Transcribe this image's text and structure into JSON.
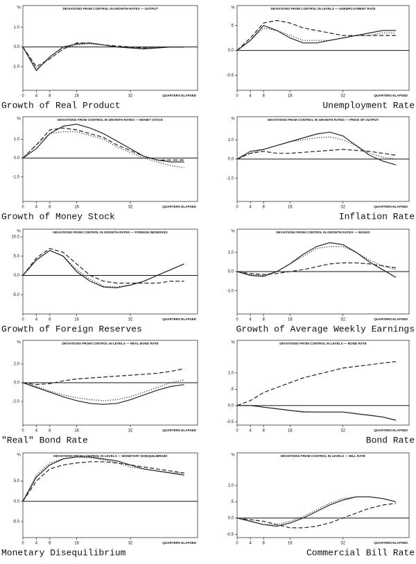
{
  "chart_data": [
    {
      "type": "line",
      "title": "DEVIATIONS FROM CONTROL IN GROWTH RATES — OUTPUT",
      "caption": "Growth of Real Product",
      "y_label": "%",
      "x_label": "QUARTERS ELAPSED",
      "x": [
        0,
        4,
        8,
        12,
        16,
        20,
        24,
        28,
        32,
        36,
        40,
        44,
        48
      ],
      "xlim": [
        0,
        52
      ],
      "xticks": [
        0,
        4,
        8,
        16,
        32
      ],
      "ylim": [
        -2.2,
        2.1
      ],
      "yticks": [
        {
          "value": 1,
          "label": "1.0"
        },
        {
          "value": 0,
          "label": "0.0"
        },
        {
          "value": -1,
          "label": "-1.0"
        }
      ],
      "series": [
        {
          "color": "#222",
          "dash": "solid",
          "values": [
            0,
            -1.2,
            -0.5,
            0,
            0.15,
            0.2,
            0.1,
            0,
            -0.05,
            -0.1,
            -0.05,
            0,
            0
          ]
        },
        {
          "color": "#222",
          "dash": "dotted",
          "values": [
            0,
            -1.1,
            -0.6,
            -0.1,
            0.1,
            0.15,
            0.1,
            0,
            -0.05,
            -0.05,
            0,
            0,
            0
          ]
        },
        {
          "color": "#222",
          "dash": "dashed",
          "values": [
            0,
            -1.0,
            -0.6,
            -0.1,
            0.2,
            0.2,
            0.1,
            0.05,
            0,
            -0.05,
            -0.05,
            0,
            0
          ]
        }
      ]
    },
    {
      "type": "line",
      "title": "DEVIATIONS FROM CONTROL IN LEVELS — UNEMPLOYMENT RATE",
      "caption": "Unemployment Rate",
      "y_label": "%",
      "x_label": "QUARTERS ELAPSED",
      "x": [
        0,
        4,
        8,
        12,
        16,
        20,
        24,
        28,
        32,
        36,
        40,
        44,
        48
      ],
      "xlim": [
        0,
        52
      ],
      "xticks": [
        0,
        4,
        8,
        16,
        32
      ],
      "ylim": [
        -0.8,
        0.9
      ],
      "yticks": [
        {
          "value": 0.5,
          "label": ".5"
        },
        {
          "value": 0,
          "label": "0.0"
        },
        {
          "value": -0.5,
          "label": "-0.5"
        }
      ],
      "series": [
        {
          "color": "#222",
          "dash": "solid",
          "values": [
            0,
            0.2,
            0.5,
            0.4,
            0.25,
            0.15,
            0.15,
            0.2,
            0.25,
            0.3,
            0.35,
            0.4,
            0.4
          ]
        },
        {
          "color": "#222",
          "dash": "dotted",
          "values": [
            0,
            0.2,
            0.45,
            0.4,
            0.3,
            0.2,
            0.2,
            0.2,
            0.25,
            0.3,
            0.3,
            0.35,
            0.35
          ]
        },
        {
          "color": "#222",
          "dash": "dashed",
          "values": [
            0,
            0.25,
            0.55,
            0.6,
            0.55,
            0.45,
            0.4,
            0.35,
            0.3,
            0.3,
            0.3,
            0.3,
            0.3
          ]
        }
      ]
    },
    {
      "type": "line",
      "title": "DEVIATIONS FROM CONTROL IN GROWTH RATES — MONEY STOCK",
      "caption": "Growth of Money Stock",
      "y_label": "%",
      "x_label": "QUARTERS ELAPSED",
      "x": [
        0,
        4,
        8,
        12,
        16,
        20,
        24,
        28,
        32,
        36,
        40,
        44,
        48
      ],
      "xlim": [
        0,
        52
      ],
      "xticks": [
        0,
        4,
        8,
        16,
        32
      ],
      "ylim": [
        -2.3,
        2.2
      ],
      "yticks": [
        {
          "value": 1,
          "label": "1.0"
        },
        {
          "value": 0,
          "label": "0.0"
        },
        {
          "value": -1,
          "label": "-1.0"
        }
      ],
      "series": [
        {
          "color": "#222",
          "dash": "solid",
          "values": [
            0,
            0.5,
            1.3,
            1.7,
            1.8,
            1.6,
            1.3,
            0.9,
            0.5,
            0.1,
            -0.1,
            -0.2,
            -0.2
          ]
        },
        {
          "color": "#222",
          "dash": "dotted",
          "values": [
            0,
            0.7,
            1.3,
            1.4,
            1.4,
            1.2,
            1.0,
            0.6,
            0.3,
            0,
            -0.2,
            -0.4,
            -0.5
          ]
        },
        {
          "color": "#222",
          "dash": "dashed",
          "values": [
            0,
            0.7,
            1.5,
            1.6,
            1.5,
            1.3,
            1.1,
            0.7,
            0.4,
            0.1,
            -0.1,
            -0.1,
            -0.1
          ]
        }
      ]
    },
    {
      "type": "line",
      "title": "DEVIATIONS FROM CONTROL IN GROWTH RATES — PRICE OF OUTPUT",
      "caption": "Inflation Rate",
      "y_label": "%",
      "x_label": "QUARTERS ELAPSED",
      "x": [
        0,
        4,
        8,
        12,
        16,
        20,
        24,
        28,
        32,
        36,
        40,
        44,
        48
      ],
      "xlim": [
        0,
        52
      ],
      "xticks": [
        0,
        4,
        8,
        16,
        32
      ],
      "ylim": [
        -2.2,
        2.2
      ],
      "yticks": [
        {
          "value": 1,
          "label": "1.0"
        },
        {
          "value": 0,
          "label": "0.0"
        },
        {
          "value": -1,
          "label": "-1.0"
        }
      ],
      "series": [
        {
          "color": "#222",
          "dash": "solid",
          "values": [
            0,
            0.4,
            0.5,
            0.7,
            0.9,
            1.1,
            1.3,
            1.4,
            1.2,
            0.7,
            0.2,
            -0.1,
            -0.3
          ]
        },
        {
          "color": "#222",
          "dash": "dotted",
          "values": [
            0,
            0.3,
            0.5,
            0.7,
            0.9,
            1.0,
            1.1,
            1.15,
            1.0,
            0.7,
            0.3,
            0.1,
            0
          ]
        },
        {
          "color": "#222",
          "dash": "dashed",
          "values": [
            0,
            0.3,
            0.4,
            0.3,
            0.3,
            0.35,
            0.4,
            0.45,
            0.5,
            0.45,
            0.4,
            0.3,
            0.2
          ]
        }
      ]
    },
    {
      "type": "line",
      "title": "DEVIATIONS FROM CONTROL IN GROWTH RATES — FOREIGN RESERVES",
      "caption": "Growth of Foreign Reserves",
      "y_label": "%",
      "x_label": "QUARTERS ELAPSED",
      "x": [
        0,
        4,
        8,
        12,
        16,
        20,
        24,
        28,
        32,
        36,
        40,
        44,
        48
      ],
      "xlim": [
        0,
        52
      ],
      "xticks": [
        0,
        4,
        8,
        16,
        32
      ],
      "ylim": [
        -10,
        12
      ],
      "yticks": [
        {
          "value": 10,
          "label": "10.0"
        },
        {
          "value": 5,
          "label": "5.0"
        },
        {
          "value": 0,
          "label": "0.0"
        },
        {
          "value": -5,
          "label": "-5.0"
        }
      ],
      "series": [
        {
          "color": "#222",
          "dash": "solid",
          "values": [
            0,
            4,
            6.5,
            5,
            1,
            -1.5,
            -3,
            -3.2,
            -2.5,
            -1.5,
            0,
            1.5,
            3
          ]
        },
        {
          "color": "#222",
          "dash": "dotted",
          "values": [
            0,
            4,
            6.5,
            5,
            1.5,
            -1,
            -2.8,
            -3,
            -2.5,
            -1.5,
            0,
            1.5,
            3
          ]
        },
        {
          "color": "#222",
          "dash": "dashed",
          "values": [
            0,
            4.5,
            7,
            6,
            3,
            0,
            -1.5,
            -2,
            -2,
            -2,
            -2,
            -1.5,
            -1.5
          ]
        }
      ]
    },
    {
      "type": "line",
      "title": "DEVIATIONS FROM CONTROL IN GROWTH RATES — WAGES",
      "caption": "Growth of Average Weekly Earnings",
      "y_label": "%",
      "x_label": "QUARTERS ELAPSED",
      "x": [
        0,
        4,
        8,
        12,
        16,
        20,
        24,
        28,
        32,
        36,
        40,
        44,
        48
      ],
      "xlim": [
        0,
        52
      ],
      "xticks": [
        0,
        4,
        8,
        16,
        32
      ],
      "ylim": [
        -2.2,
        2.2
      ],
      "yticks": [
        {
          "value": 1,
          "label": "1.0"
        },
        {
          "value": 0,
          "label": "0.0"
        },
        {
          "value": -1,
          "label": "-1.0"
        }
      ],
      "series": [
        {
          "color": "#222",
          "dash": "solid",
          "values": [
            0,
            -0.2,
            -0.25,
            0,
            0.4,
            0.9,
            1.3,
            1.5,
            1.4,
            1.0,
            0.5,
            0.1,
            -0.3
          ]
        },
        {
          "color": "#222",
          "dash": "dotted",
          "values": [
            0,
            -0.15,
            -0.2,
            0,
            0.4,
            0.8,
            1.2,
            1.3,
            1.3,
            1.0,
            0.6,
            0.3,
            0.1
          ]
        },
        {
          "color": "#222",
          "dash": "dashed",
          "values": [
            0,
            -0.1,
            -0.15,
            -0.1,
            0,
            0.1,
            0.25,
            0.4,
            0.45,
            0.45,
            0.4,
            0.3,
            0.2
          ]
        }
      ]
    },
    {
      "type": "line",
      "title": "DEVIATIONS FROM CONTROL IN LEVELS — REAL BOND RATE",
      "caption": "\"Real\" Bond Rate",
      "y_label": "%",
      "x_label": "QUARTERS ELAPSED",
      "x": [
        0,
        4,
        8,
        12,
        16,
        20,
        24,
        28,
        32,
        36,
        40,
        44,
        48
      ],
      "xlim": [
        0,
        52
      ],
      "xticks": [
        0,
        4,
        8,
        16,
        32
      ],
      "ylim": [
        -4.5,
        4.5
      ],
      "yticks": [
        {
          "value": 2,
          "label": "2.0"
        },
        {
          "value": 0,
          "label": "0.0"
        },
        {
          "value": -2,
          "label": "-2.0"
        }
      ],
      "series": [
        {
          "color": "#222",
          "dash": "solid",
          "values": [
            0,
            -0.5,
            -1,
            -1.5,
            -1.9,
            -2.2,
            -2.3,
            -2.2,
            -1.8,
            -1.3,
            -0.8,
            -0.4,
            -0.2
          ]
        },
        {
          "color": "#222",
          "dash": "dotted",
          "values": [
            0,
            -0.4,
            -0.9,
            -1.3,
            -1.6,
            -1.8,
            -1.9,
            -1.8,
            -1.5,
            -1.0,
            -0.5,
            0,
            0.3
          ]
        },
        {
          "color": "#222",
          "dash": "dashed",
          "values": [
            0,
            -0.2,
            -0.1,
            0.2,
            0.4,
            0.5,
            0.6,
            0.7,
            0.8,
            0.9,
            1.0,
            1.2,
            1.5
          ]
        }
      ]
    },
    {
      "type": "line",
      "title": "DEVIATIONS FROM CONTROL IN LEVELS — BOND RATE",
      "caption": "Bond Rate",
      "y_label": "%",
      "x_label": "QUARTERS ELAPSED",
      "x": [
        0,
        4,
        8,
        12,
        16,
        20,
        24,
        28,
        32,
        36,
        40,
        44,
        48
      ],
      "xlim": [
        0,
        52
      ],
      "xticks": [
        0,
        4,
        8,
        16,
        32
      ],
      "ylim": [
        -0.6,
        2.0
      ],
      "yticks": [
        {
          "value": 1,
          "label": "1.0"
        },
        {
          "value": 0.5,
          "label": ".5"
        },
        {
          "value": 0,
          "label": "0.0"
        },
        {
          "value": -0.5,
          "label": "-0.5"
        }
      ],
      "series": [
        {
          "color": "#222",
          "dash": "solid",
          "values": [
            0,
            0,
            -0.05,
            -0.1,
            -0.15,
            -0.2,
            -0.2,
            -0.2,
            -0.2,
            -0.25,
            -0.3,
            -0.35,
            -0.45
          ]
        },
        {
          "color": "#222",
          "dash": "dotted",
          "values": [
            0,
            0,
            -0.05,
            -0.1,
            -0.15,
            -0.18,
            -0.2,
            -0.2,
            -0.2,
            -0.25,
            -0.3,
            -0.35,
            -0.45
          ]
        },
        {
          "color": "#222",
          "dash": "dashed",
          "values": [
            0,
            0.15,
            0.4,
            0.55,
            0.7,
            0.85,
            0.95,
            1.05,
            1.15,
            1.2,
            1.25,
            1.3,
            1.35
          ]
        }
      ]
    },
    {
      "type": "line",
      "title": "DEVIATIONS FROM CONTROL IN LEVELS — MONETARY DISEQUILIBRIUM",
      "caption": "Monetary Disequilibrium",
      "y_label": "%",
      "x_label": "QUARTERS ELAPSED",
      "x": [
        0,
        4,
        8,
        12,
        16,
        20,
        24,
        28,
        32,
        36,
        40,
        44,
        48
      ],
      "xlim": [
        0,
        52
      ],
      "xticks": [
        0,
        4,
        8,
        16,
        32
      ],
      "ylim": [
        -9,
        12
      ],
      "yticks": [
        {
          "value": 5,
          "label": "5.0"
        },
        {
          "value": 0,
          "label": "0.0"
        },
        {
          "value": -5,
          "label": "-5.0"
        }
      ],
      "series": [
        {
          "color": "#222",
          "dash": "solid",
          "values": [
            0,
            6,
            9,
            10.5,
            11,
            11,
            10.5,
            10,
            9,
            8,
            7.5,
            7,
            6.5
          ]
        },
        {
          "color": "#222",
          "dash": "dotted",
          "values": [
            0,
            6.5,
            9.5,
            10.5,
            11,
            10.8,
            10.3,
            9.5,
            8.5,
            8,
            7.5,
            7,
            7
          ]
        },
        {
          "color": "#222",
          "dash": "dashed",
          "values": [
            0,
            5,
            8,
            9,
            9.5,
            9.8,
            9.8,
            9.5,
            9,
            8.5,
            8,
            7.5,
            7
          ]
        }
      ]
    },
    {
      "type": "line",
      "title": "DEVIATIONS FROM CONTROL IN LEVELS — BILL RATE",
      "caption": "Commercial Bill Rate",
      "y_label": "%",
      "x_label": "QUARTERS ELAPSED",
      "x": [
        0,
        4,
        8,
        12,
        16,
        20,
        24,
        28,
        32,
        36,
        40,
        44,
        48
      ],
      "xlim": [
        0,
        52
      ],
      "xticks": [
        0,
        4,
        8,
        16,
        32
      ],
      "ylim": [
        -0.6,
        2.0
      ],
      "yticks": [
        {
          "value": 1,
          "label": "1.0"
        },
        {
          "value": 0.5,
          "label": ".5"
        },
        {
          "value": 0,
          "label": "0.0"
        },
        {
          "value": -0.5,
          "label": "-0.5"
        }
      ],
      "series": [
        {
          "color": "#222",
          "dash": "solid",
          "values": [
            0,
            -0.1,
            -0.2,
            -0.25,
            -0.15,
            0,
            0.2,
            0.4,
            0.55,
            0.65,
            0.65,
            0.6,
            0.5
          ]
        },
        {
          "color": "#222",
          "dash": "dotted",
          "values": [
            0,
            -0.1,
            -0.2,
            -0.2,
            -0.1,
            0.05,
            0.25,
            0.45,
            0.6,
            0.65,
            0.65,
            0.6,
            0.5
          ]
        },
        {
          "color": "#222",
          "dash": "dashed",
          "values": [
            0,
            -0.05,
            -0.1,
            -0.2,
            -0.3,
            -0.3,
            -0.25,
            -0.15,
            0,
            0.15,
            0.3,
            0.4,
            0.45
          ]
        }
      ]
    }
  ]
}
